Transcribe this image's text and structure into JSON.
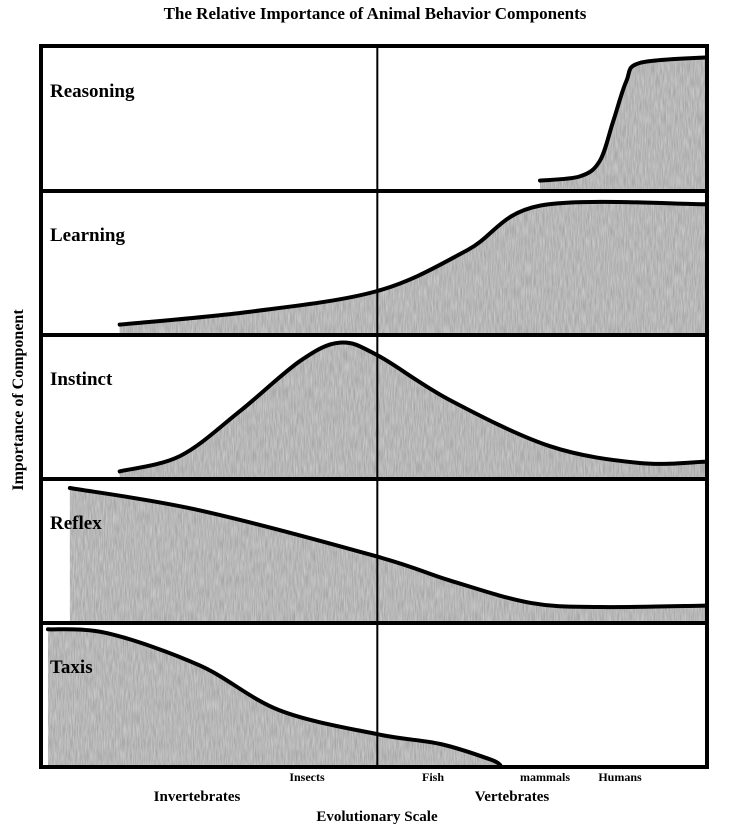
{
  "chart_data": {
    "type": "area",
    "title": "The Relative Importance of Animal Behavior Components",
    "xlabel": "Evolutionary Scale",
    "ylabel": "Importance of Component",
    "x_tick_labels": [
      "Insects",
      "Fish",
      "mammals",
      "Humans"
    ],
    "x_group_labels": [
      "Invertebrates",
      "Vertebrates"
    ],
    "xlim": [
      0,
      100
    ],
    "ylim": [
      0,
      1
    ],
    "divider_x": 50.5,
    "fill_color": "#9a9a9a",
    "line_color": "#000000",
    "series": [
      {
        "name": "Reasoning",
        "points": [
          [
            75,
            0.06
          ],
          [
            81,
            0.09
          ],
          [
            84,
            0.2
          ],
          [
            86,
            0.48
          ],
          [
            88,
            0.77
          ],
          [
            90,
            0.9
          ],
          [
            100,
            0.94
          ]
        ]
      },
      {
        "name": "Learning",
        "points": [
          [
            11.7,
            0.06
          ],
          [
            31,
            0.15
          ],
          [
            50.5,
            0.3
          ],
          [
            64,
            0.59
          ],
          [
            75,
            0.91
          ],
          [
            100,
            0.92
          ]
        ]
      },
      {
        "name": "Instinct",
        "points": [
          [
            11.7,
            0.04
          ],
          [
            20.8,
            0.15
          ],
          [
            29.8,
            0.47
          ],
          [
            38.9,
            0.83
          ],
          [
            44.9,
            0.96
          ],
          [
            50.5,
            0.87
          ],
          [
            61.4,
            0.55
          ],
          [
            76.5,
            0.22
          ],
          [
            90,
            0.1
          ],
          [
            100,
            0.11
          ]
        ]
      },
      {
        "name": "Reflex",
        "points": [
          [
            4.2,
            0.95
          ],
          [
            23.8,
            0.79
          ],
          [
            50.5,
            0.46
          ],
          [
            61.4,
            0.29
          ],
          [
            73.5,
            0.13
          ],
          [
            84,
            0.1
          ],
          [
            100,
            0.11
          ]
        ]
      },
      {
        "name": "Taxis",
        "points": [
          [
            0.9,
            0.97
          ],
          [
            10,
            0.94
          ],
          [
            23.8,
            0.71
          ],
          [
            35.8,
            0.39
          ],
          [
            50.5,
            0.22
          ],
          [
            60,
            0.15
          ],
          [
            67.5,
            0.04
          ],
          [
            69,
            0
          ]
        ]
      }
    ]
  }
}
